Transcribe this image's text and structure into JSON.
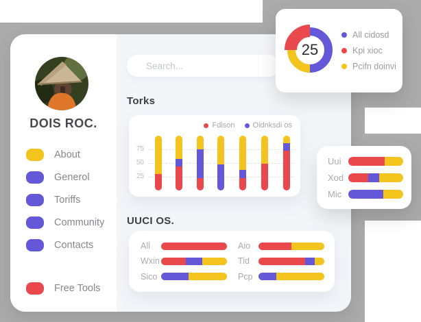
{
  "colors": {
    "red": "#e9484d",
    "purple": "#6458d9",
    "yellow": "#f2c41d",
    "backdrop_gray": "#ababab",
    "content_bg": "#f4f5f9"
  },
  "sidebar": {
    "name": "DOIS ROC.",
    "avatar_alt": "profile-photo-conical-hat",
    "menu": [
      {
        "label": "About",
        "color": "yellow"
      },
      {
        "label": "Generol",
        "color": "purple"
      },
      {
        "label": "Toriffs",
        "color": "purple"
      },
      {
        "label": "Community",
        "color": "purple"
      },
      {
        "label": "Contacts",
        "color": "purple"
      }
    ],
    "footer_item": {
      "label": "Free Tools",
      "color": "red"
    }
  },
  "search": {
    "placeholder": "Search..."
  },
  "sections": {
    "torks_title": "Torks",
    "uuci_title": "UUCI OS."
  },
  "chart_data": [
    {
      "id": "donut",
      "type": "pie",
      "center_label": "25",
      "legend_position": "right",
      "slices": [
        {
          "label": "All cidosd",
          "color": "purple",
          "pct": 50
        },
        {
          "label": "Pcifn doinvi",
          "color": "yellow",
          "pct": 25
        },
        {
          "label": "Kpi xioc",
          "color": "red",
          "pct": 25,
          "emphasis": true
        }
      ],
      "legend": [
        {
          "label": "All cidosd",
          "color": "purple"
        },
        {
          "label": "Kpi xioc",
          "color": "red"
        },
        {
          "label": "Pcifn doinvi",
          "color": "yellow"
        }
      ]
    },
    {
      "id": "torks",
      "type": "bar",
      "stacked": true,
      "ymax": 100,
      "yticks": [
        25,
        50,
        75
      ],
      "grid": "dashed",
      "legend": [
        {
          "label": "Fdison",
          "color": "red"
        },
        {
          "label": "Oidnksdi os",
          "color": "purple"
        }
      ],
      "bars": [
        [
          [
            "red",
            30
          ],
          [
            "yellow",
            70
          ]
        ],
        [
          [
            "red",
            44
          ],
          [
            "purple",
            14
          ],
          [
            "yellow",
            42
          ]
        ],
        [
          [
            "red",
            22
          ],
          [
            "purple",
            53
          ],
          [
            "yellow",
            25
          ]
        ],
        [
          [
            "purple",
            48
          ],
          [
            "yellow",
            52
          ]
        ],
        [
          [
            "red",
            22
          ],
          [
            "purple",
            16
          ],
          [
            "yellow",
            62
          ]
        ],
        [
          [
            "red",
            49
          ],
          [
            "yellow",
            51
          ]
        ],
        [
          [
            "red",
            73
          ],
          [
            "purple",
            13
          ],
          [
            "yellow",
            14
          ]
        ]
      ]
    },
    {
      "id": "uuci",
      "type": "hbar",
      "rows": [
        {
          "label": "All",
          "segments": [
            [
              "red",
              100
            ]
          ]
        },
        {
          "label": "Wxin",
          "segments": [
            [
              "red",
              37
            ],
            [
              "purple",
              26
            ],
            [
              "yellow",
              37
            ]
          ]
        },
        {
          "label": "Sico",
          "segments": [
            [
              "purple",
              42
            ],
            [
              "yellow",
              58
            ]
          ]
        },
        {
          "label": "Aio",
          "segments": [
            [
              "red",
              50
            ],
            [
              "yellow",
              50
            ]
          ]
        },
        {
          "label": "Tid",
          "segments": [
            [
              "red",
              71
            ],
            [
              "purple",
              14
            ],
            [
              "yellow",
              15
            ]
          ]
        },
        {
          "label": "Pcp",
          "segments": [
            [
              "purple",
              27
            ],
            [
              "yellow",
              73
            ]
          ]
        }
      ]
    },
    {
      "id": "mini",
      "type": "hbar",
      "rows": [
        {
          "label": "Uui",
          "segments": [
            [
              "red",
              66
            ],
            [
              "yellow",
              34
            ]
          ]
        },
        {
          "label": "Xod",
          "segments": [
            [
              "red",
              36
            ],
            [
              "purple",
              20
            ],
            [
              "yellow",
              44
            ]
          ]
        },
        {
          "label": "Mic",
          "segments": [
            [
              "purple",
              64
            ],
            [
              "yellow",
              36
            ]
          ]
        }
      ]
    }
  ]
}
